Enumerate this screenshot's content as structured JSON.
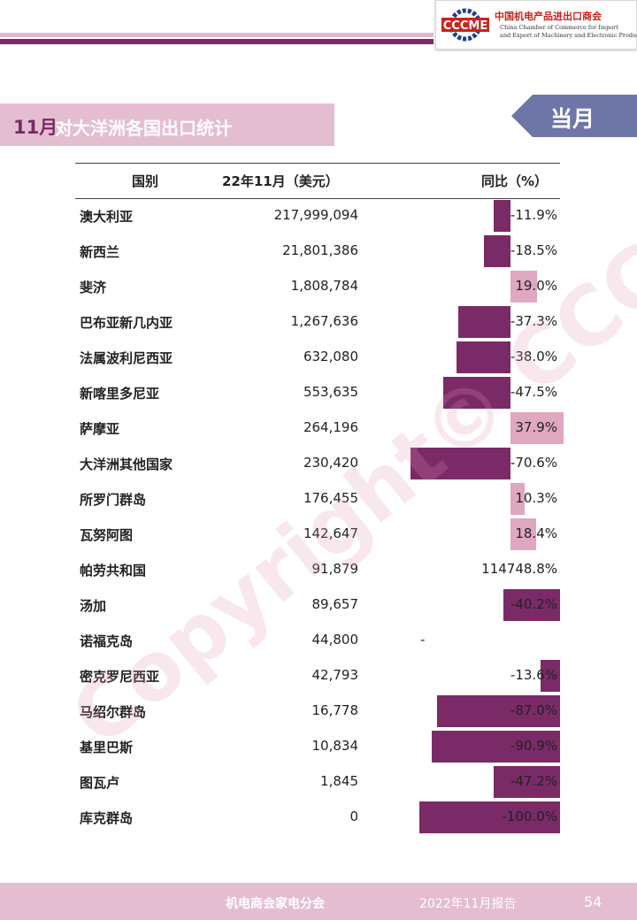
{
  "logo": {
    "mark_text": "CCCME",
    "org_cn": "中国机电产品进出口商会",
    "org_en_line1": "China Chamber of Commerce for Import",
    "org_en_line2": "and Export of Machinery and Electronic Products"
  },
  "title": {
    "month": "11月",
    "text": "对大洋洲各国出口统计"
  },
  "badge": "当月",
  "watermark": "Copyright© CCCME",
  "colors": {
    "accent_dark": "#7b2a68",
    "accent_light": "#e4bed0",
    "negative_bar": "#7b2a68",
    "positive_bar": "#dfa7c0",
    "badge": "#6e76a8"
  },
  "table": {
    "headers": {
      "country": "国别",
      "value": "22年11月（美元）",
      "yoy": "同比（%）"
    },
    "rows": [
      {
        "country": "澳大利亚",
        "value": "217,999,094",
        "yoy": "-11.9%",
        "yoy_num": -11.9
      },
      {
        "country": "新西兰",
        "value": "21,801,386",
        "yoy": "-18.5%",
        "yoy_num": -18.5
      },
      {
        "country": "斐济",
        "value": "1,808,784",
        "yoy": "19.0%",
        "yoy_num": 19.0
      },
      {
        "country": "巴布亚新几内亚",
        "value": "1,267,636",
        "yoy": "-37.3%",
        "yoy_num": -37.3
      },
      {
        "country": "法属波利尼西亚",
        "value": "632,080",
        "yoy": "-38.0%",
        "yoy_num": -38.0
      },
      {
        "country": "新喀里多尼亚",
        "value": "553,635",
        "yoy": "-47.5%",
        "yoy_num": -47.5
      },
      {
        "country": "萨摩亚",
        "value": "264,196",
        "yoy": "37.9%",
        "yoy_num": 37.9
      },
      {
        "country": "大洋洲其他国家",
        "value": "230,420",
        "yoy": "-70.6%",
        "yoy_num": -70.6
      },
      {
        "country": "所罗门群岛",
        "value": "176,455",
        "yoy": "10.3%",
        "yoy_num": 10.3
      },
      {
        "country": "瓦努阿图",
        "value": "142,647",
        "yoy": "18.4%",
        "yoy_num": 18.4
      },
      {
        "country": "帕劳共和国",
        "value": "91,879",
        "yoy": "114748.8%",
        "yoy_num": 114748.8,
        "no_bar": true
      },
      {
        "country": "汤加",
        "value": "89,657",
        "yoy": "-40.2%",
        "yoy_num": -40.2,
        "anchor": "right"
      },
      {
        "country": "诺福克岛",
        "value": "44,800",
        "yoy": "-",
        "yoy_num": null,
        "dash": true
      },
      {
        "country": "密克罗尼西亚",
        "value": "42,793",
        "yoy": "-13.6%",
        "yoy_num": -13.6,
        "anchor": "right"
      },
      {
        "country": "马绍尔群岛",
        "value": "16,778",
        "yoy": "-87.0%",
        "yoy_num": -87.0,
        "anchor": "right"
      },
      {
        "country": "基里巴斯",
        "value": "10,834",
        "yoy": "-90.9%",
        "yoy_num": -90.9,
        "anchor": "right"
      },
      {
        "country": "图瓦卢",
        "value": "1,845",
        "yoy": "-47.2%",
        "yoy_num": -47.2,
        "anchor": "right"
      },
      {
        "country": "库克群岛",
        "value": "0",
        "yoy": "-100.0%",
        "yoy_num": -100.0,
        "anchor": "right"
      }
    ]
  },
  "footer": {
    "org": "机电商会家电分会",
    "report": "2022年11月报告",
    "page": "54"
  }
}
